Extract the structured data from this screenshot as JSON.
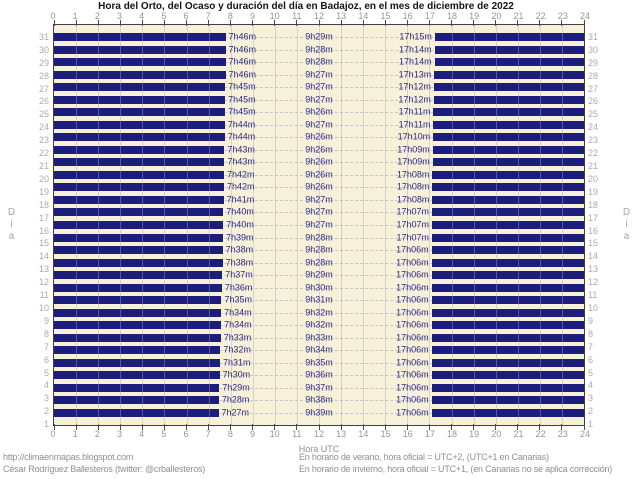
{
  "title": "Hora del Orto, del Ocaso y duración del día en Badajoz, en el mes de diciembre de 2022",
  "axis": {
    "x_label": "Hora UTC",
    "y_label_left": "Día",
    "y_label_right": "Día",
    "hours": [
      0,
      1,
      2,
      3,
      4,
      5,
      6,
      7,
      8,
      9,
      10,
      11,
      12,
      13,
      14,
      15,
      16,
      17,
      18,
      19,
      20,
      21,
      22,
      23,
      24
    ]
  },
  "footer": {
    "left_line1": "http://climaenmapas.blogspot.com",
    "left_line2": "César Rodríguez Ballesteros (twitter: @crballesteros)",
    "right_line1": "En horario de verano, hora oficial = UTC+2, (UTC+1 en Canarias)",
    "right_line2": "En horario de invierno, hora oficial = UTC+1, (en Canarias no se aplica corrección)"
  },
  "colors": {
    "bar_navy": "#1d1d7c",
    "plot_background": "#f8f1d9",
    "bar_label_text": "#2b2b88",
    "axis_text": "#969696",
    "day_text": "#ababab",
    "footer_text": "#8f8f8f"
  },
  "chart_data": {
    "type": "bar",
    "subtype": "horizontal-span-gantt",
    "description": "Each row is a day of December 2022 (31 top to 1 bottom); navy bars cover night hours 0h-sunrise and sunset-24h UTC; the cream gap is daylight. Labels give sunrise time, day duration, sunset time.",
    "x_range": [
      0,
      24
    ],
    "grid": "vertical lines every hour, dashed horizontal line per row",
    "rows": [
      {
        "day": 31,
        "sunrise": "7h46m",
        "daylight": "9h29m",
        "sunset": "17h15m"
      },
      {
        "day": 30,
        "sunrise": "7h46m",
        "daylight": "9h28m",
        "sunset": "17h14m"
      },
      {
        "day": 29,
        "sunrise": "7h46m",
        "daylight": "9h28m",
        "sunset": "17h14m"
      },
      {
        "day": 28,
        "sunrise": "7h46m",
        "daylight": "9h27m",
        "sunset": "17h13m"
      },
      {
        "day": 27,
        "sunrise": "7h45m",
        "daylight": "9h27m",
        "sunset": "17h12m"
      },
      {
        "day": 26,
        "sunrise": "7h45m",
        "daylight": "9h27m",
        "sunset": "17h12m"
      },
      {
        "day": 25,
        "sunrise": "7h45m",
        "daylight": "9h26m",
        "sunset": "17h11m"
      },
      {
        "day": 24,
        "sunrise": "7h44m",
        "daylight": "9h27m",
        "sunset": "17h11m"
      },
      {
        "day": 23,
        "sunrise": "7h44m",
        "daylight": "9h26m",
        "sunset": "17h10m"
      },
      {
        "day": 22,
        "sunrise": "7h43m",
        "daylight": "9h26m",
        "sunset": "17h09m"
      },
      {
        "day": 21,
        "sunrise": "7h43m",
        "daylight": "9h26m",
        "sunset": "17h09m"
      },
      {
        "day": 20,
        "sunrise": "7h42m",
        "daylight": "9h26m",
        "sunset": "17h08m"
      },
      {
        "day": 19,
        "sunrise": "7h42m",
        "daylight": "9h26m",
        "sunset": "17h08m"
      },
      {
        "day": 18,
        "sunrise": "7h41m",
        "daylight": "9h27m",
        "sunset": "17h08m"
      },
      {
        "day": 17,
        "sunrise": "7h40m",
        "daylight": "9h27m",
        "sunset": "17h07m"
      },
      {
        "day": 16,
        "sunrise": "7h40m",
        "daylight": "9h27m",
        "sunset": "17h07m"
      },
      {
        "day": 15,
        "sunrise": "7h39m",
        "daylight": "9h28m",
        "sunset": "17h07m"
      },
      {
        "day": 14,
        "sunrise": "7h38m",
        "daylight": "9h28m",
        "sunset": "17h06m"
      },
      {
        "day": 13,
        "sunrise": "7h38m",
        "daylight": "9h28m",
        "sunset": "17h06m"
      },
      {
        "day": 12,
        "sunrise": "7h37m",
        "daylight": "9h29m",
        "sunset": "17h06m"
      },
      {
        "day": 11,
        "sunrise": "7h36m",
        "daylight": "9h30m",
        "sunset": "17h06m"
      },
      {
        "day": 10,
        "sunrise": "7h35m",
        "daylight": "9h31m",
        "sunset": "17h06m"
      },
      {
        "day": 9,
        "sunrise": "7h34m",
        "daylight": "9h32m",
        "sunset": "17h06m"
      },
      {
        "day": 8,
        "sunrise": "7h34m",
        "daylight": "9h32m",
        "sunset": "17h06m"
      },
      {
        "day": 7,
        "sunrise": "7h33m",
        "daylight": "9h33m",
        "sunset": "17h06m"
      },
      {
        "day": 6,
        "sunrise": "7h32m",
        "daylight": "9h34m",
        "sunset": "17h06m"
      },
      {
        "day": 5,
        "sunrise": "7h31m",
        "daylight": "9h35m",
        "sunset": "17h06m"
      },
      {
        "day": 4,
        "sunrise": "7h30m",
        "daylight": "9h36m",
        "sunset": "17h06m"
      },
      {
        "day": 3,
        "sunrise": "7h29m",
        "daylight": "9h37m",
        "sunset": "17h06m"
      },
      {
        "day": 2,
        "sunrise": "7h28m",
        "daylight": "9h38m",
        "sunset": "17h06m"
      },
      {
        "day": 1,
        "sunrise": "7h27m",
        "daylight": "9h39m",
        "sunset": "17h06m"
      }
    ]
  }
}
